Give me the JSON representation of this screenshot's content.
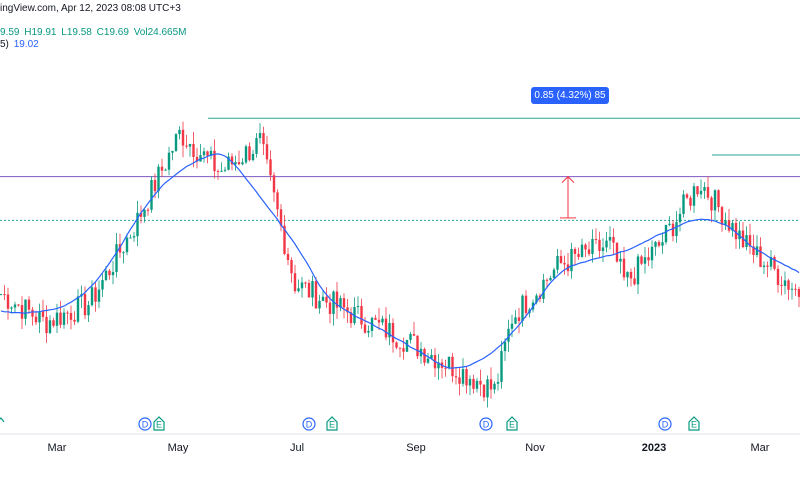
{
  "header": {
    "source_line": "ingView.com, Apr 12, 2023 08:08 UTC+3",
    "ohlc": {
      "open": "9.59",
      "high": "H19.91",
      "low": "L19.58",
      "close": "C19.69",
      "volume": "Vol24.665M"
    },
    "ma_line": {
      "prefix": "5)",
      "value": "19.02"
    }
  },
  "colors": {
    "up": "#089981",
    "down": "#f23645",
    "ma": "#2962ff",
    "teal_line": "#26a69a",
    "purple_line": "#7e57c2",
    "measure": "#f23645",
    "event": "#2962ff",
    "earnings": "#089981"
  },
  "chart_data": {
    "type": "candlestick",
    "x_labels": [
      "Mar",
      "May",
      "Jul",
      "Sep",
      "Nov",
      "2023",
      "Mar"
    ],
    "price_range": [
      17.5,
      24.6
    ],
    "series": [
      {
        "name": "price",
        "kind": "candles"
      },
      {
        "name": "moving-average",
        "kind": "line"
      }
    ],
    "key_points": [
      {
        "date": "Feb",
        "close": 19.8
      },
      {
        "date": "Mar",
        "close": 19.2
      },
      {
        "date": "Apr",
        "close": 19.6
      },
      {
        "date": "May",
        "close": 21.2
      },
      {
        "date": "late May",
        "close": 23.1
      },
      {
        "date": "Jun",
        "close": 22.3
      },
      {
        "date": "Jul",
        "close": 22.9
      },
      {
        "date": "mid Jul",
        "close": 20.0
      },
      {
        "date": "Aug",
        "close": 19.6
      },
      {
        "date": "Sep",
        "close": 18.9
      },
      {
        "date": "Oct",
        "close": 17.8
      },
      {
        "date": "late Oct",
        "close": 19.3
      },
      {
        "date": "Nov",
        "close": 20.4
      },
      {
        "date": "Dec",
        "close": 20.8
      },
      {
        "date": "late Dec",
        "close": 20.0
      },
      {
        "date": "Jan",
        "close": 20.8
      },
      {
        "date": "late Jan",
        "close": 22.1
      },
      {
        "date": "Feb",
        "close": 20.8
      },
      {
        "date": "Mar",
        "close": 19.8
      }
    ],
    "levels": [
      {
        "name": "upper-teal",
        "value": 23.4
      },
      {
        "name": "purple",
        "value": 22.2
      },
      {
        "name": "lower-teal",
        "value": 21.3
      }
    ],
    "measure": {
      "label": "0.85 (4.32%) 85"
    },
    "events": [
      {
        "type": "D",
        "x_label": "Apr"
      },
      {
        "type": "E",
        "x_label": "Apr"
      },
      {
        "type": "D",
        "x_label": "Jul"
      },
      {
        "type": "E",
        "x_label": "Jul"
      },
      {
        "type": "D",
        "x_label": "Oct"
      },
      {
        "type": "E",
        "x_label": "Oct"
      },
      {
        "type": "D",
        "x_label": "Jan"
      },
      {
        "type": "E",
        "x_label": "Jan"
      }
    ]
  }
}
